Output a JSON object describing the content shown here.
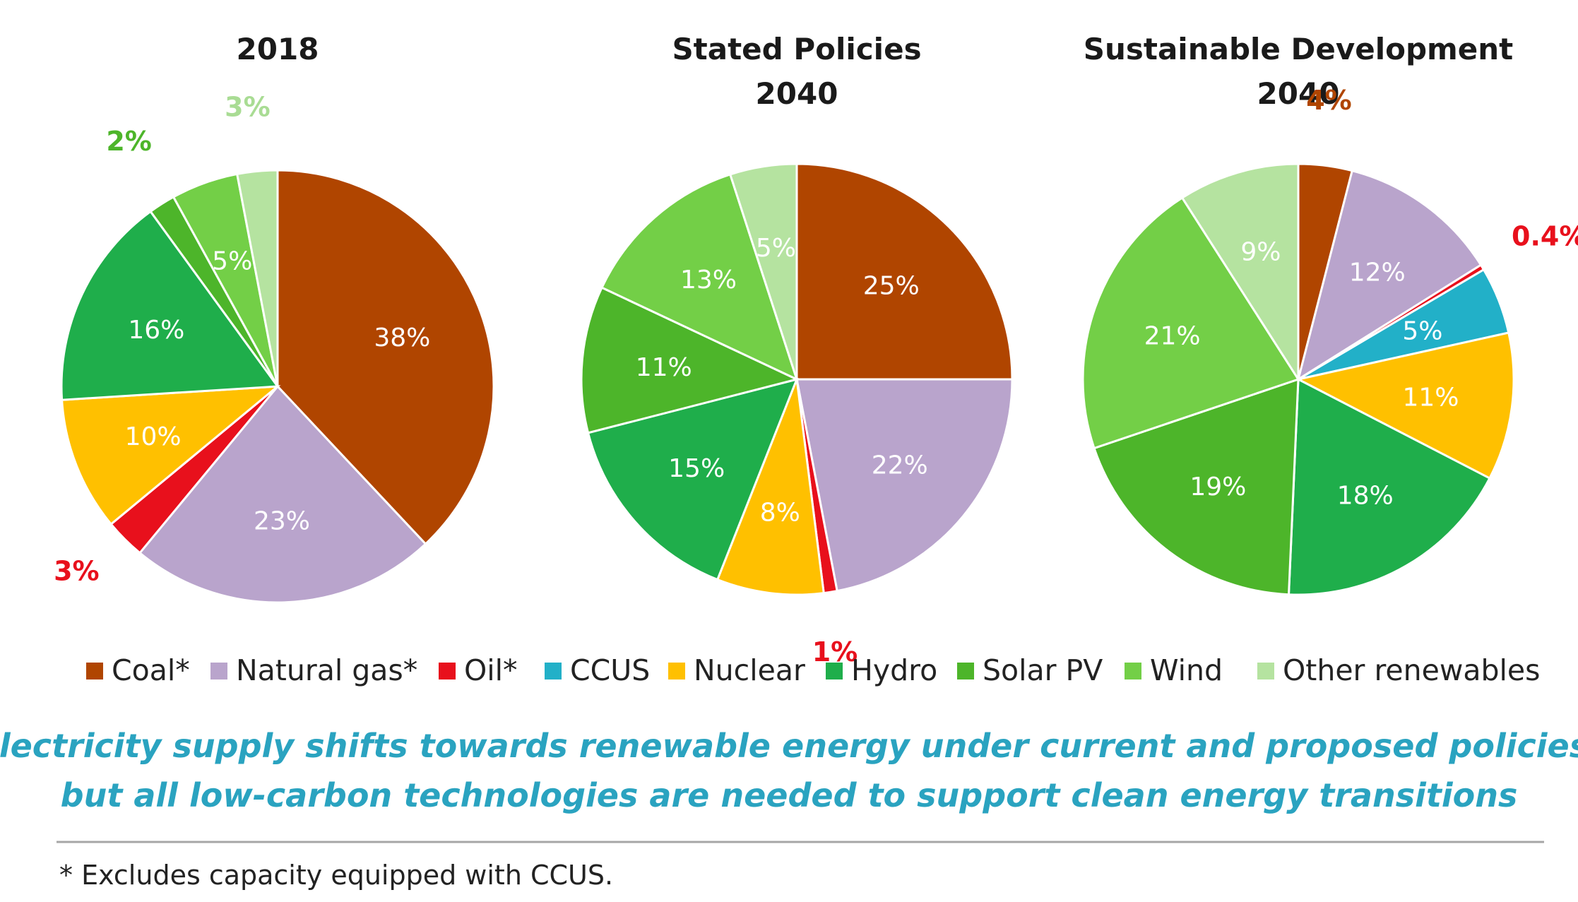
{
  "chart_data": {
    "type": "pie",
    "categories": [
      "Coal*",
      "Natural gas*",
      "Oil*",
      "CCUS",
      "Nuclear",
      "Hydro",
      "Solar PV",
      "Wind",
      "Other renewables"
    ],
    "colors": [
      "#b04500",
      "#b9a4cc",
      "#e8101c",
      "#22b0c8",
      "#ffc000",
      "#1fae4b",
      "#4db52a",
      "#73cf47",
      "#b5e3a0"
    ],
    "charts": [
      {
        "title": [
          "2018"
        ],
        "values": [
          38,
          23,
          3,
          0,
          10,
          16,
          2,
          5,
          3
        ],
        "labels": [
          "38%",
          "23%",
          "3%",
          "",
          "10%",
          "16%",
          "2%",
          "5%",
          "3%"
        ]
      },
      {
        "title": [
          "Stated Policies",
          "2040"
        ],
        "values": [
          25,
          22,
          1,
          0,
          8,
          15,
          11,
          13,
          5
        ],
        "labels": [
          "25%",
          "22%",
          "1%",
          "",
          "8%",
          "15%",
          "11%",
          "13%",
          "5%"
        ]
      },
      {
        "title": [
          "Sustainable Development",
          "2040"
        ],
        "values": [
          4,
          12,
          0.4,
          5,
          11,
          18,
          19,
          21,
          9
        ],
        "labels": [
          "4%",
          "12%",
          "0.4%",
          "5%",
          "11%",
          "18%",
          "19%",
          "21%",
          "9%"
        ]
      }
    ]
  },
  "caption": [
    "Electricity supply shifts towards renewable energy under current and proposed policies,",
    "but all low-carbon technologies are needed to support clean energy transitions"
  ],
  "footnote": "* Excludes capacity equipped with CCUS."
}
